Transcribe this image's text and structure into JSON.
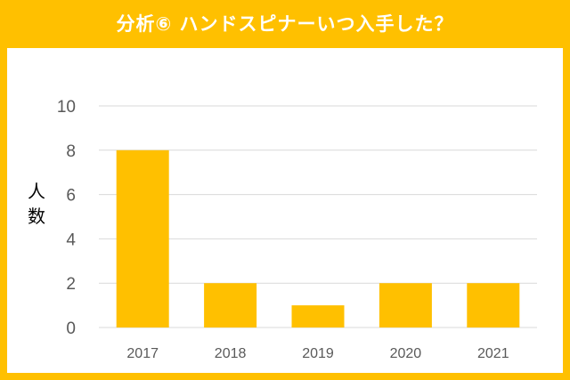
{
  "chart_data": {
    "type": "bar",
    "title": "分析⑥ ハンドスピナーいつ入手した？",
    "ylabel": "人数",
    "xlabel": "",
    "categories": [
      "2017",
      "2018",
      "2019",
      "2020",
      "2021"
    ],
    "values": [
      8,
      2,
      1,
      2,
      2
    ],
    "ylim": [
      0,
      10
    ],
    "yticks": [
      0,
      2,
      4,
      6,
      8,
      10
    ],
    "grid": true,
    "bar_color": "#FFC000",
    "frame_color": "#FFC000",
    "grid_color": "#D9D9D9"
  }
}
